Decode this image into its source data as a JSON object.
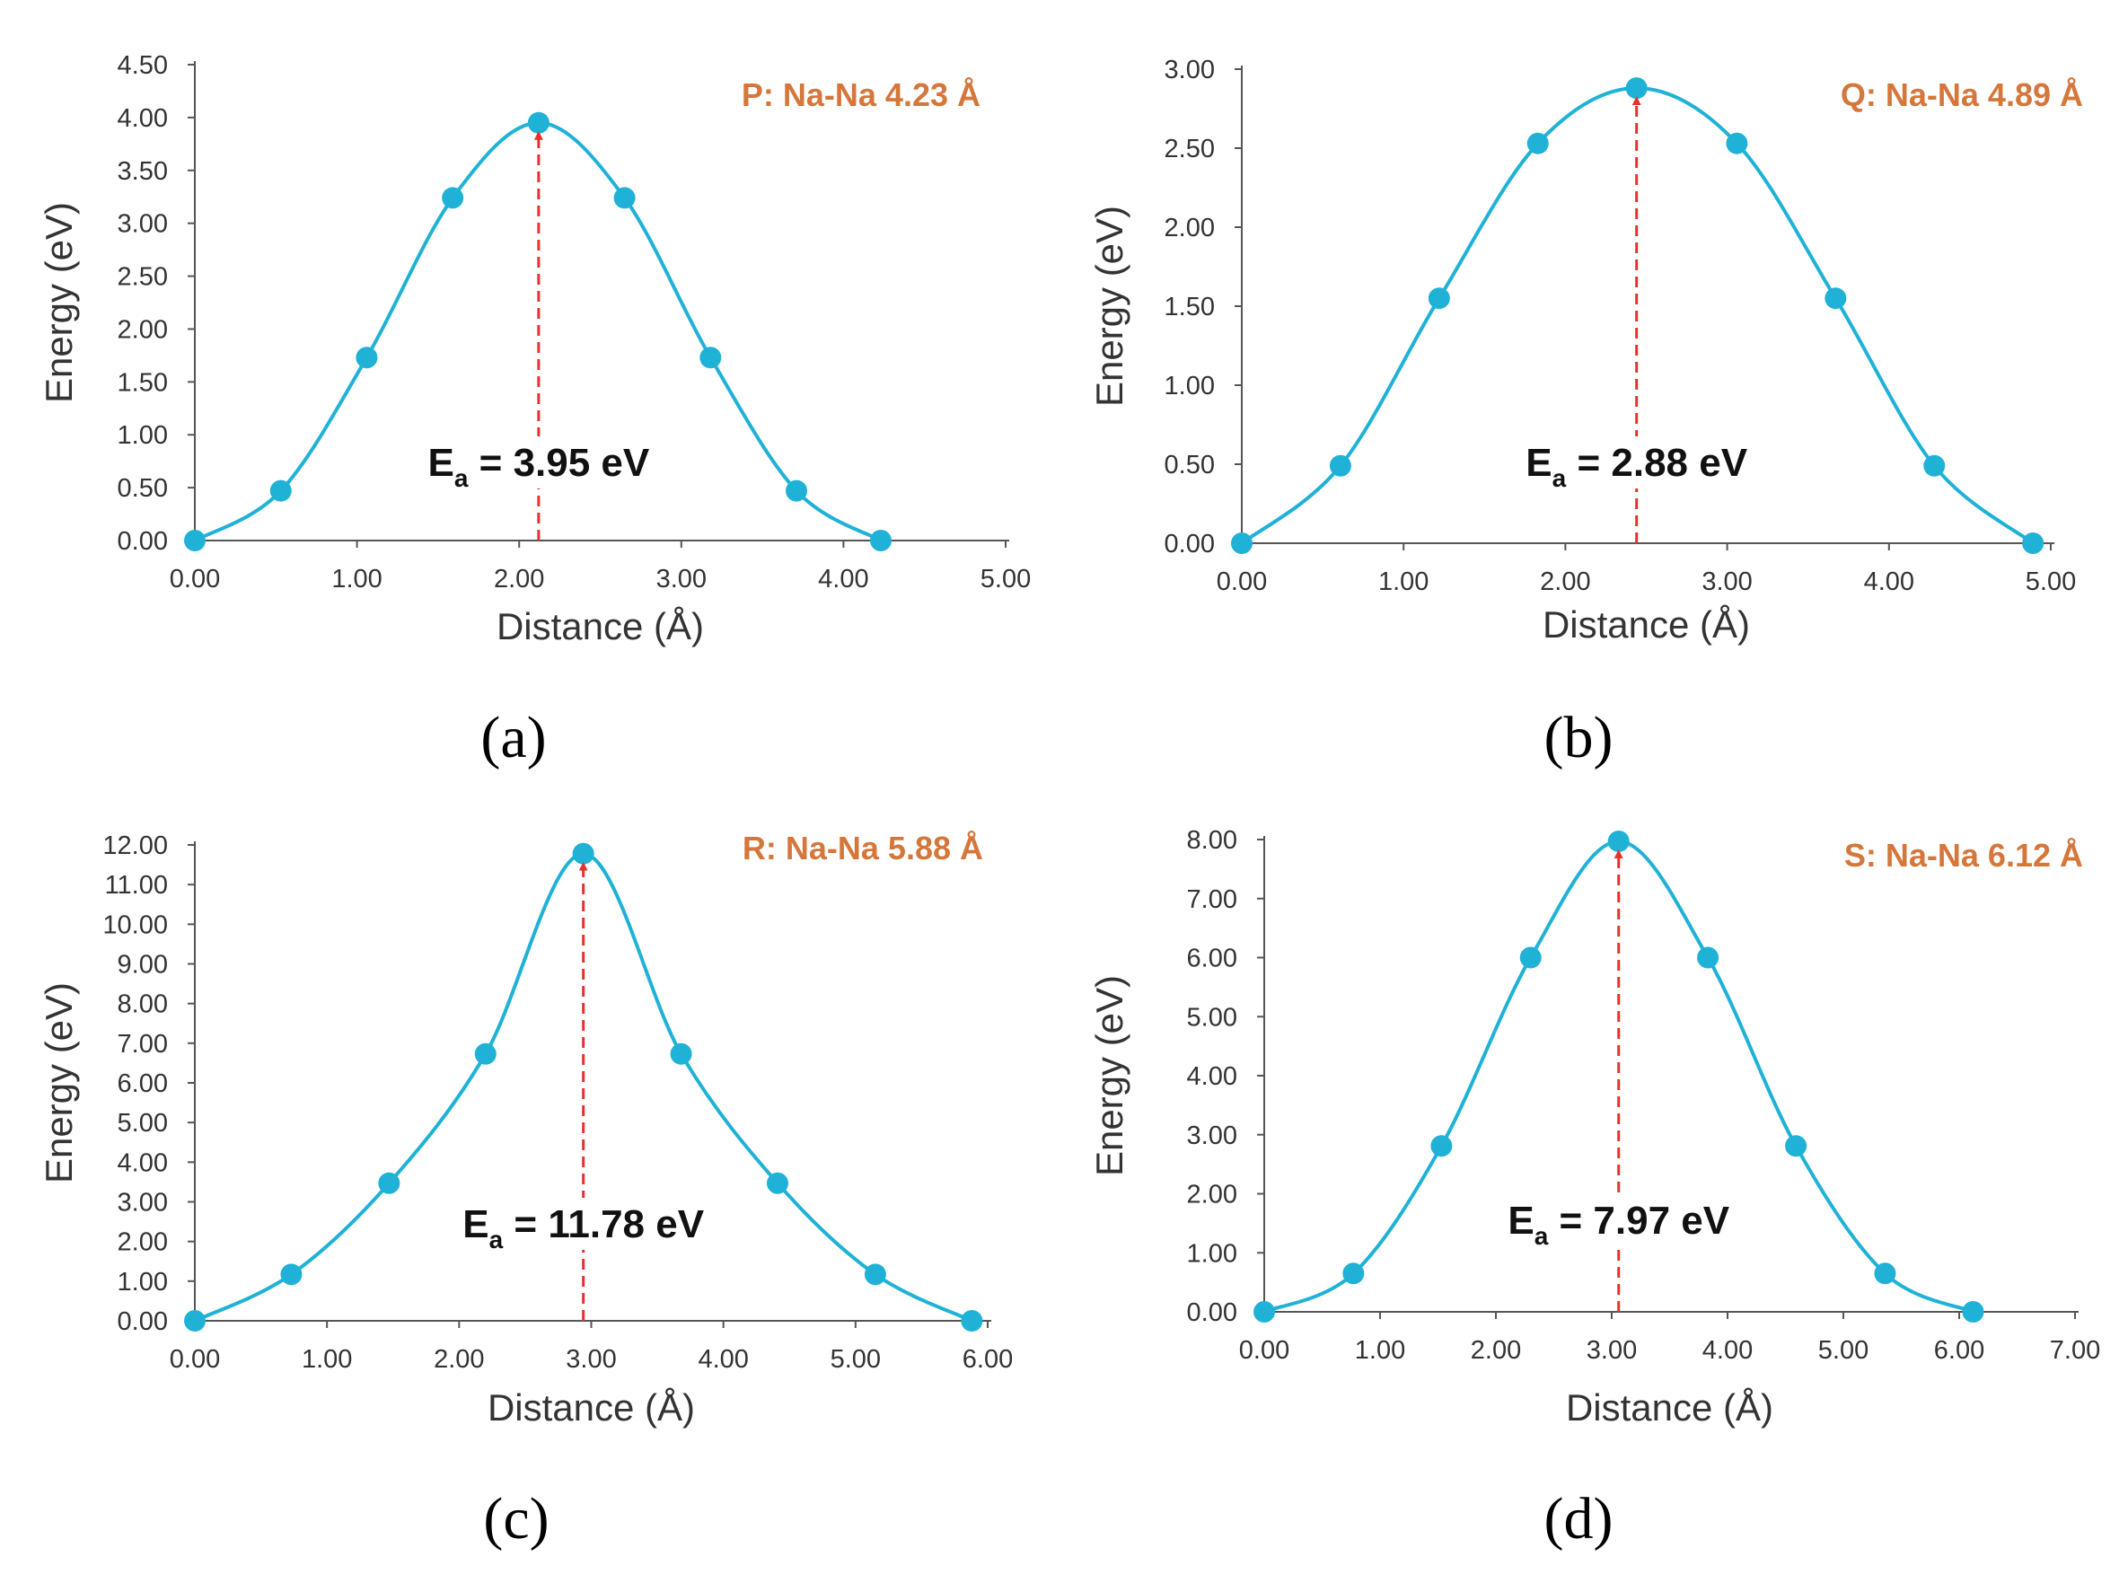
{
  "style": {
    "line_color": "#1fb2d6",
    "marker_color": "#1fb2d6",
    "arrow_color": "#e8312c",
    "title_color": "#d5773b",
    "axis_color": "#555555"
  },
  "chart_data": [
    {
      "type": "line",
      "panel_label": "(a)",
      "title": "P: Na-Na 4.23 Å",
      "xlabel": "Distance (Å)",
      "ylabel": "Energy (eV)",
      "xlim": [
        0,
        5
      ],
      "ylim": [
        0,
        4.5
      ],
      "xticks": [
        "0.00",
        "1.00",
        "2.00",
        "3.00",
        "4.00",
        "5.00"
      ],
      "yticks": [
        "0.00",
        "0.50",
        "1.00",
        "1.50",
        "2.00",
        "2.50",
        "3.00",
        "3.50",
        "4.00",
        "4.50"
      ],
      "series": [
        {
          "name": "Energy",
          "x": [
            0,
            0.53,
            1.06,
            1.59,
            2.12,
            2.65,
            3.18,
            3.71,
            4.23
          ],
          "y": [
            0,
            0.47,
            1.73,
            3.24,
            3.95,
            3.24,
            1.73,
            0.47,
            0
          ]
        }
      ],
      "annotation": {
        "label": "E",
        "subscript": "a",
        "value_text": " = 3.95 eV",
        "peak_x": 2.12,
        "peak_y": 3.95
      }
    },
    {
      "type": "line",
      "panel_label": "(b)",
      "title": "Q: Na-Na 4.89 Å",
      "xlabel": "Distance (Å)",
      "ylabel": "Energy (eV)",
      "xlim": [
        0,
        5
      ],
      "ylim": [
        0,
        3
      ],
      "xticks": [
        "0.00",
        "1.00",
        "2.00",
        "3.00",
        "4.00",
        "5.00"
      ],
      "yticks": [
        "0.00",
        "0.50",
        "1.00",
        "1.50",
        "2.00",
        "2.50",
        "3.00"
      ],
      "series": [
        {
          "name": "Energy",
          "x": [
            0,
            0.61,
            1.22,
            1.83,
            2.44,
            3.06,
            3.67,
            4.28,
            4.89
          ],
          "y": [
            0,
            0.49,
            1.55,
            2.53,
            2.88,
            2.53,
            1.55,
            0.49,
            0
          ]
        }
      ],
      "annotation": {
        "label": "E",
        "subscript": "a",
        "value_text": " = 2.88 eV",
        "peak_x": 2.44,
        "peak_y": 2.88
      }
    },
    {
      "type": "line",
      "panel_label": "(c)",
      "title": "R: Na-Na 5.88 Å",
      "xlabel": "Distance (Å)",
      "ylabel": "Energy (eV)",
      "xlim": [
        0,
        6
      ],
      "ylim": [
        0,
        12
      ],
      "xticks": [
        "0.00",
        "1.00",
        "2.00",
        "3.00",
        "4.00",
        "5.00",
        "6.00"
      ],
      "yticks": [
        "0.00",
        "1.00",
        "2.00",
        "3.00",
        "4.00",
        "5.00",
        "6.00",
        "7.00",
        "8.00",
        "9.00",
        "10.00",
        "11.00",
        "12.00"
      ],
      "series": [
        {
          "name": "Energy",
          "x": [
            0,
            0.73,
            1.47,
            2.2,
            2.94,
            3.68,
            4.41,
            5.15,
            5.88
          ],
          "y": [
            0,
            1.17,
            3.47,
            6.73,
            11.78,
            6.73,
            3.47,
            1.17,
            0
          ]
        }
      ],
      "annotation": {
        "label": "E",
        "subscript": "a",
        "value_text": " = 11.78 eV",
        "peak_x": 2.94,
        "peak_y": 11.78
      }
    },
    {
      "type": "line",
      "panel_label": "(d)",
      "title": "S: Na-Na 6.12 Å",
      "xlabel": "Distance (Å)",
      "ylabel": "Energy (eV)",
      "xlim": [
        0,
        7
      ],
      "ylim": [
        0,
        8
      ],
      "xticks": [
        "0.00",
        "1.00",
        "2.00",
        "3.00",
        "4.00",
        "5.00",
        "6.00",
        "7.00"
      ],
      "yticks": [
        "0.00",
        "1.00",
        "2.00",
        "3.00",
        "4.00",
        "5.00",
        "6.00",
        "7.00",
        "8.00"
      ],
      "series": [
        {
          "name": "Energy",
          "x": [
            0,
            0.77,
            1.53,
            2.3,
            3.06,
            3.83,
            4.59,
            5.36,
            6.12
          ],
          "y": [
            0,
            0.65,
            2.81,
            6.0,
            7.97,
            6.0,
            2.81,
            0.65,
            0
          ]
        }
      ],
      "annotation": {
        "label": "E",
        "subscript": "a",
        "value_text": " = 7.97 eV",
        "peak_x": 3.06,
        "peak_y": 7.97
      }
    }
  ]
}
